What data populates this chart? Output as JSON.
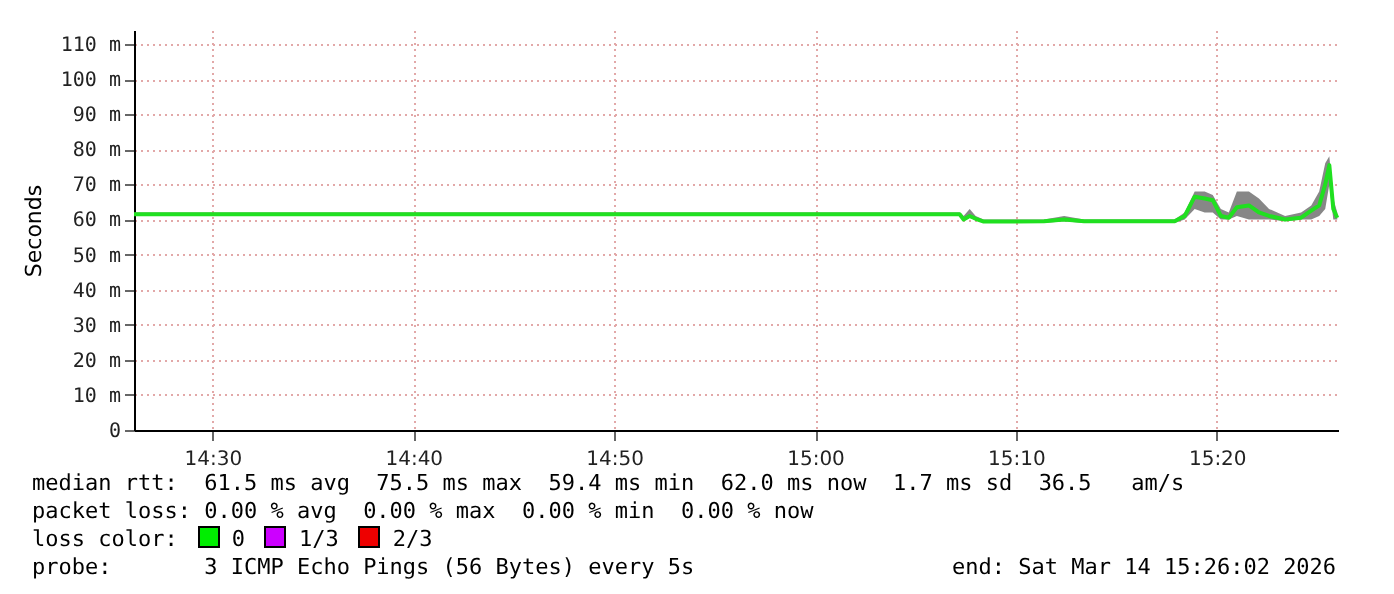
{
  "chart_data": {
    "type": "line",
    "ylabel": "Seconds",
    "x": [
      14.435,
      15.12,
      15.1233,
      15.1283,
      15.1333,
      15.14,
      15.19,
      15.2067,
      15.2233,
      15.2983,
      15.3067,
      15.315,
      15.3233,
      15.33,
      15.3367,
      15.3433,
      15.35,
      15.36,
      15.3683,
      15.3767,
      15.39,
      15.4033,
      15.4117,
      15.4183,
      15.4233,
      15.4267,
      15.43,
      15.4333
    ],
    "series": [
      {
        "color": "#20e020",
        "values": [
          61.5,
          61.5,
          60,
          61,
          60.2,
          59.4,
          59.5,
          60,
          59.5,
          59.5,
          61,
          66.5,
          66,
          65.5,
          61,
          60.5,
          63.5,
          64,
          62,
          61,
          60,
          60.5,
          62.5,
          64,
          70,
          75.5,
          63,
          60.5
        ],
        "lower": [
          61,
          61,
          59.5,
          60.5,
          59.8,
          59,
          59,
          59.5,
          59,
          59,
          60,
          63,
          62,
          62,
          60,
          60,
          61,
          60,
          60,
          60,
          59.5,
          60,
          60,
          61,
          63,
          70,
          60,
          60
        ],
        "upper": [
          62,
          62,
          61,
          63,
          61,
          60,
          60,
          61,
          60,
          60,
          62,
          68,
          68,
          67,
          63,
          62,
          68,
          68,
          66,
          63,
          61,
          62,
          64,
          68,
          76,
          78,
          66,
          62
        ]
      }
    ],
    "xlim": [
      14.435,
      15.4339
    ],
    "ylim": [
      0,
      114
    ],
    "xticks": [
      {
        "value": 14.5,
        "label": "14:30"
      },
      {
        "value": 14.6667,
        "label": "14:40"
      },
      {
        "value": 14.8333,
        "label": "14:50"
      },
      {
        "value": 15,
        "label": "15:00"
      },
      {
        "value": 15.1667,
        "label": "15:10"
      },
      {
        "value": 15.3333,
        "label": "15:20"
      }
    ],
    "yticks": [
      0,
      {
        "value": 10,
        "label": "10 m"
      },
      {
        "value": 20,
        "label": "20 m"
      },
      {
        "value": 30,
        "label": "30 m"
      },
      {
        "value": 40,
        "label": "40 m"
      },
      {
        "value": 50,
        "label": "50 m"
      },
      {
        "value": 60,
        "label": "60 m"
      },
      {
        "value": 70,
        "label": "70 m"
      },
      {
        "value": 80,
        "label": "80 m"
      },
      {
        "value": 90,
        "label": "90 m"
      },
      {
        "value": 100,
        "label": "100 m"
      },
      {
        "value": 110,
        "label": "110 m"
      }
    ],
    "grid": true,
    "line_style": "solid",
    "marker": "none",
    "annotations": [
      "median rtt:  61.5 ms avg  75.5 ms max  59.4 ms min  62.0 ms now  1.7 ms sd  36.5   am/s",
      "packet loss: 0.00 % avg  0.00 % max  0.00 % min  0.00 % now",
      "loss color:",
      "0",
      "1/3",
      "2/3",
      "probe:       3 ICMP Echo Pings (56 Bytes) every 5s",
      "end: Sat Mar 14 15:26:02 2026"
    ]
  }
}
